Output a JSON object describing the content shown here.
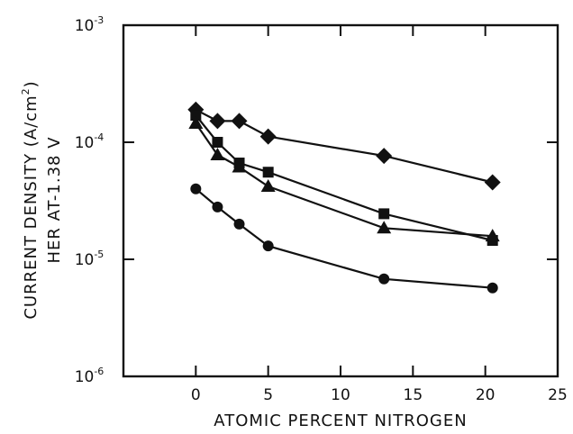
{
  "chart_data": {
    "type": "line",
    "xlabel": "ATOMIC PERCENT NITROGEN",
    "ylabel": {
      "line1_prefix": "CURRENT DENSITY (A/cm",
      "line1_sup": "2",
      "line1_suffix": ")",
      "line2": "HER AT-1.38 V"
    },
    "xlim": [
      -5,
      25
    ],
    "ylim": [
      1e-06,
      0.001
    ],
    "yscale": "log",
    "grid": false,
    "x_ticks": [
      {
        "value": 0,
        "label": "0"
      },
      {
        "value": 5,
        "label": "5"
      },
      {
        "value": 10,
        "label": "10"
      },
      {
        "value": 15,
        "label": "15"
      },
      {
        "value": 20,
        "label": "20"
      },
      {
        "value": 25,
        "label": "25"
      }
    ],
    "y_ticks": [
      {
        "value": 0.001,
        "base": "10",
        "exp": "-3"
      },
      {
        "value": 0.0001,
        "base": "10",
        "exp": "-4"
      },
      {
        "value": 1e-05,
        "base": "10",
        "exp": "-5"
      },
      {
        "value": 1e-06,
        "base": "10",
        "exp": "-6"
      }
    ],
    "series": [
      {
        "marker": "diamond",
        "x": [
          0,
          1.5,
          3,
          5,
          13,
          20.5
        ],
        "y": [
          0.00019,
          0.000152,
          0.000152,
          0.000112,
          7.65e-05,
          4.55e-05
        ]
      },
      {
        "marker": "square",
        "x": [
          0,
          1.5,
          3,
          5,
          13,
          20.5
        ],
        "y": [
          0.00017,
          0.0001,
          6.65e-05,
          5.55e-05,
          2.45e-05,
          1.45e-05
        ]
      },
      {
        "marker": "triangle",
        "x": [
          0,
          1.5,
          3,
          5,
          13,
          20.5
        ],
        "y": [
          0.000145,
          7.8e-05,
          6.15e-05,
          4.2e-05,
          1.85e-05,
          1.58e-05
        ]
      },
      {
        "marker": "circle",
        "x": [
          0,
          1.5,
          3,
          5,
          13,
          20.5
        ],
        "y": [
          4e-05,
          2.8e-05,
          2e-05,
          1.3e-05,
          6.8e-06,
          5.7e-06
        ]
      }
    ]
  }
}
